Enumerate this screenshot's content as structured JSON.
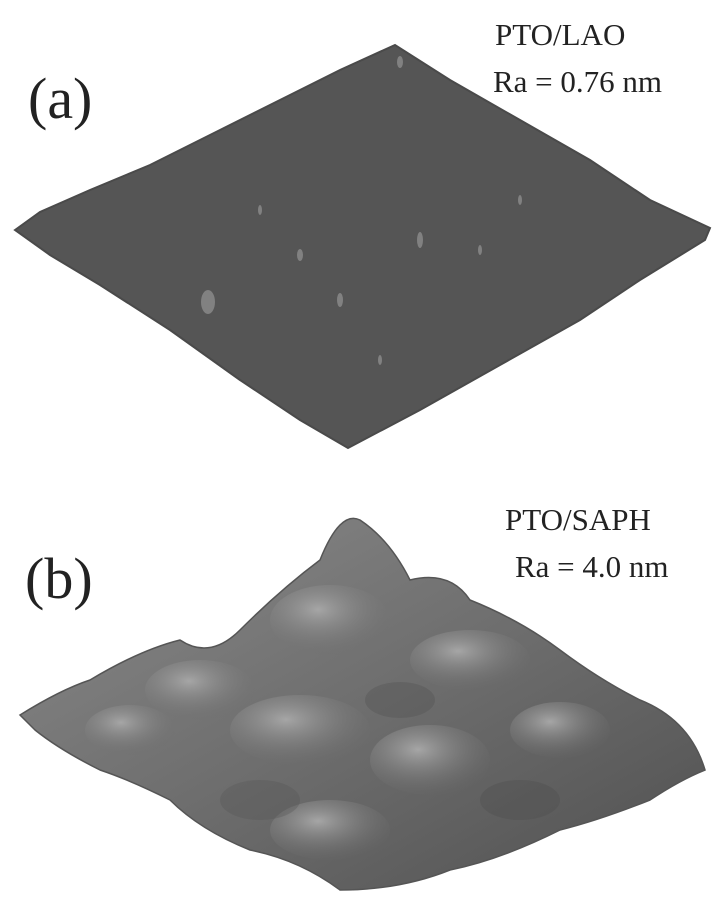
{
  "panels": [
    {
      "label": "(a)",
      "sample": "PTO/LAO",
      "roughness": "Ra = 0.76 nm"
    },
    {
      "label": "(b)",
      "sample": "PTO/SAPH",
      "roughness": "Ra = 4.0 nm"
    }
  ]
}
